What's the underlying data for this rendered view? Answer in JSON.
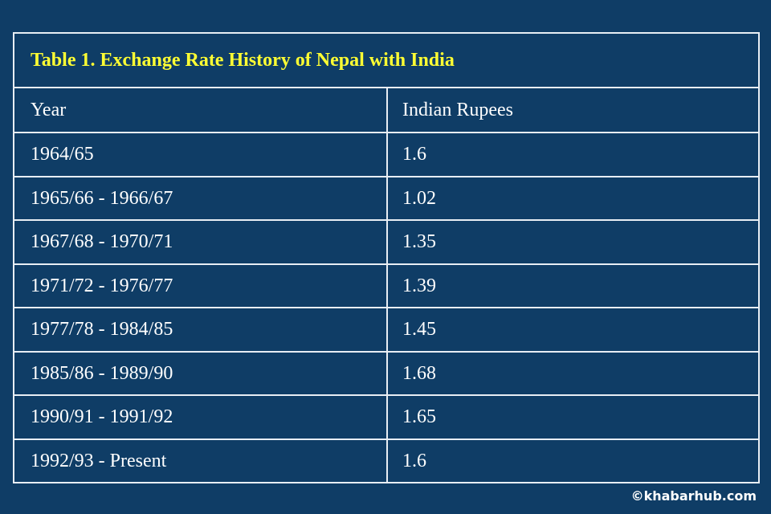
{
  "table": {
    "title": "Table 1. Exchange Rate History of Nepal with India",
    "header": [
      "Year",
      "Indian Rupees"
    ],
    "rows": [
      [
        "1964/65",
        1.6
      ],
      [
        "1965/66 - 1966/67",
        1.02
      ],
      [
        "1967/68 - 1970/71",
        1.35
      ],
      [
        "1971/72 - 1976/77",
        1.39
      ],
      [
        "1977/78 - 1984/85",
        1.45
      ],
      [
        "1985/86 - 1989/90",
        1.68
      ],
      [
        "1990/91 - 1991/92",
        1.65
      ],
      [
        "1992/93 - Present",
        1.6
      ]
    ]
  },
  "credit": "©khabarhub.com"
}
